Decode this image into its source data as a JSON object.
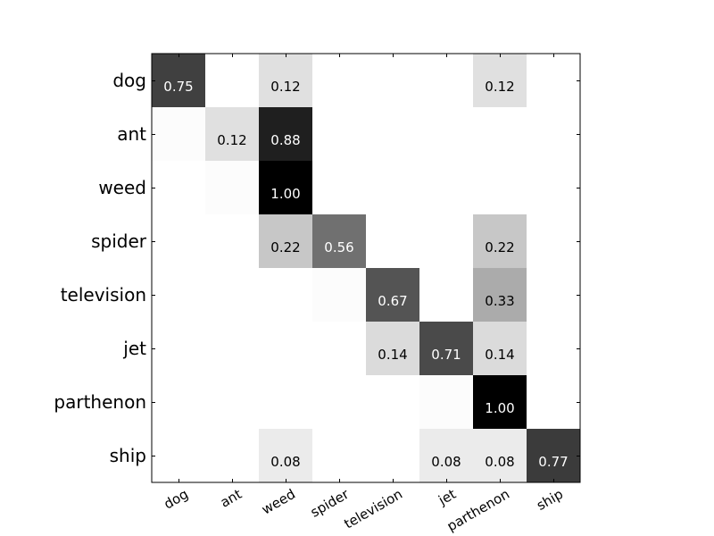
{
  "chart_data": {
    "type": "heatmap",
    "title": "",
    "xlabel": "",
    "ylabel": "",
    "rows": [
      "dog",
      "ant",
      "weed",
      "spider",
      "television",
      "jet",
      "parthenon",
      "ship"
    ],
    "columns": [
      "dog",
      "ant",
      "weed",
      "spider",
      "television",
      "jet",
      "parthenon",
      "ship"
    ],
    "values": [
      [
        0.75,
        0.0,
        0.12,
        0.0,
        0.0,
        0.0,
        0.12,
        0.0
      ],
      [
        0.01,
        0.12,
        0.88,
        0.0,
        0.0,
        0.0,
        0.0,
        0.0
      ],
      [
        0.0,
        0.01,
        1.0,
        0.0,
        0.0,
        0.0,
        0.0,
        0.0
      ],
      [
        0.0,
        0.0,
        0.22,
        0.56,
        0.0,
        0.0,
        0.22,
        0.0
      ],
      [
        0.0,
        0.0,
        0.0,
        0.01,
        0.67,
        0.0,
        0.33,
        0.0
      ],
      [
        0.0,
        0.0,
        0.0,
        0.0,
        0.14,
        0.71,
        0.14,
        0.0
      ],
      [
        0.0,
        0.0,
        0.0,
        0.0,
        0.0,
        0.01,
        1.0,
        0.0
      ],
      [
        0.0,
        0.0,
        0.08,
        0.0,
        0.0,
        0.08,
        0.08,
        0.77
      ]
    ],
    "labels": [
      [
        "0.75",
        "",
        "0.12",
        "",
        "",
        "",
        "0.12",
        ""
      ],
      [
        "",
        "0.12",
        "0.88",
        "",
        "",
        "",
        "",
        ""
      ],
      [
        "",
        "",
        "1.00",
        "",
        "",
        "",
        "",
        ""
      ],
      [
        "",
        "",
        "0.22",
        "0.56",
        "",
        "",
        "0.22",
        ""
      ],
      [
        "",
        "",
        "",
        "",
        "0.67",
        "",
        "0.33",
        ""
      ],
      [
        "",
        "",
        "",
        "",
        "0.14",
        "0.71",
        "0.14",
        ""
      ],
      [
        "",
        "",
        "",
        "",
        "",
        "",
        "1.00",
        ""
      ],
      [
        "",
        "",
        "0.08",
        "",
        "",
        "0.08",
        "0.08",
        "0.77"
      ]
    ],
    "colormap": "grayscale-reversed",
    "vmin": 0,
    "vmax": 1,
    "grid": false,
    "legend": "none"
  }
}
